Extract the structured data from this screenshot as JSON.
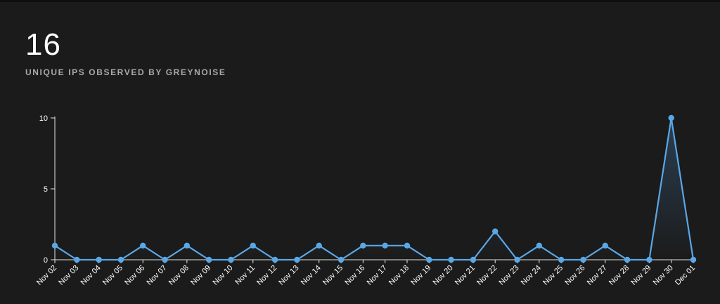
{
  "summary": {
    "count": "16",
    "label": "UNIQUE IPS OBSERVED BY GREYNOISE"
  },
  "colors": {
    "line": "#5aa7e6",
    "fill_top": "#2b3f52",
    "fill_bottom": "#1b1b1b",
    "axis": "#e6e6e6",
    "background": "#1b1b1b"
  },
  "chart_data": {
    "type": "area",
    "title": "",
    "xlabel": "",
    "ylabel": "",
    "ylim": [
      0,
      10
    ],
    "yticks": [
      0,
      5,
      10
    ],
    "grid": false,
    "categories": [
      "Nov 02",
      "Nov 03",
      "Nov 04",
      "Nov 05",
      "Nov 06",
      "Nov 07",
      "Nov 08",
      "Nov 09",
      "Nov 10",
      "Nov 11",
      "Nov 12",
      "Nov 13",
      "Nov 14",
      "Nov 15",
      "Nov 16",
      "Nov 17",
      "Nov 18",
      "Nov 19",
      "Nov 20",
      "Nov 21",
      "Nov 22",
      "Nov 23",
      "Nov 24",
      "Nov 25",
      "Nov 26",
      "Nov 27",
      "Nov 28",
      "Nov 29",
      "Nov 30",
      "Dec 01"
    ],
    "series": [
      {
        "values": [
          1,
          0,
          0,
          0,
          1,
          0,
          1,
          0,
          0,
          1,
          0,
          0,
          1,
          0,
          1,
          1,
          1,
          0,
          0,
          0,
          2,
          0,
          1,
          0,
          0,
          1,
          0,
          0,
          10,
          0
        ]
      }
    ]
  }
}
